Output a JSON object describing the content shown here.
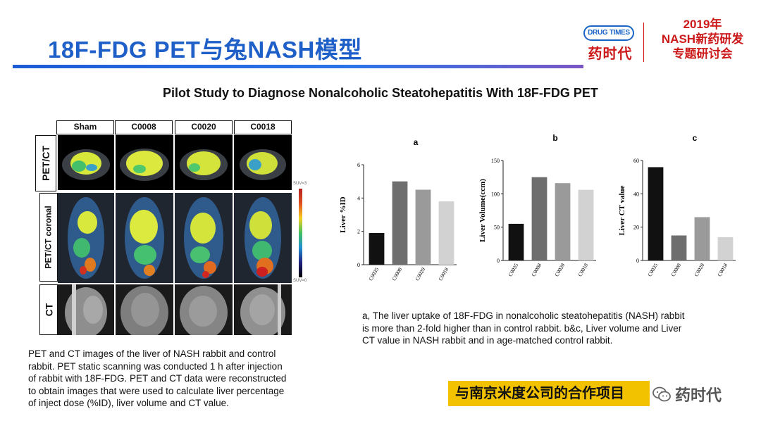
{
  "header": {
    "title": "18F-FDG PET与兔NASH模型",
    "logo_text": "DRUG TIMES",
    "logo_cn": "药时代",
    "event_line1": "2019年",
    "event_line2": "NASH新药研发",
    "event_line3": "专题研讨会"
  },
  "heading": "Pilot Study to Diagnose Nonalcoholic Steatohepatitis With 18F-FDG PET",
  "imaging_panel": {
    "columns": [
      "Sham",
      "C0008",
      "C0020",
      "C0018"
    ],
    "rows": [
      "PET/CT",
      "PET/CT coronal",
      "CT"
    ],
    "scale_top": "SUV=3",
    "scale_bottom": "SUV=0",
    "caption_lines": [
      "PET and CT images of the liver of NASH rabbit and control",
      "rabbit. PET static scanning was conducted 1 h after injection",
      "of rabbit with 18F-FDG. PET and CT data were reconstructed",
      "to obtain images that were used to calculate liver percentage",
      "of inject dose (%ID), liver volume and CT value."
    ]
  },
  "chart_data": [
    {
      "type": "bar",
      "title": "a",
      "categories": [
        "C0035",
        "C0008",
        "C0020",
        "C0018"
      ],
      "values": [
        1.9,
        5.0,
        4.5,
        3.8
      ],
      "ylabel": "Liver %ID",
      "xlabel": "",
      "ylim": [
        0,
        6
      ],
      "yticks": [
        0,
        2,
        4,
        6
      ],
      "bar_colors": [
        "#111111",
        "#6e6e6e",
        "#9a9a9a",
        "#d2d2d2"
      ]
    },
    {
      "type": "bar",
      "title": "b",
      "categories": [
        "C0035",
        "C0008",
        "C0020",
        "C0018"
      ],
      "values": [
        55,
        125,
        116,
        106
      ],
      "ylabel": "Liver Volume(ccm)",
      "xlabel": "",
      "ylim": [
        0,
        150
      ],
      "yticks": [
        0,
        50,
        100,
        150
      ],
      "bar_colors": [
        "#111111",
        "#6e6e6e",
        "#9a9a9a",
        "#d2d2d2"
      ]
    },
    {
      "type": "bar",
      "title": "c",
      "categories": [
        "C0035",
        "C0008",
        "C0020",
        "C0018"
      ],
      "values": [
        56,
        15,
        26,
        14
      ],
      "ylabel": "Liver CT value",
      "xlabel": "",
      "ylim": [
        0,
        60
      ],
      "yticks": [
        0,
        20,
        40,
        60
      ],
      "bar_colors": [
        "#111111",
        "#6e6e6e",
        "#9a9a9a",
        "#d2d2d2"
      ]
    }
  ],
  "charts_caption_lines": [
    "a, The liver uptake of 18F-FDG in nonalcoholic steatohepatitis (NASH) rabbit",
    "is more than 2-fold higher than in control rabbit. b&c, Liver volume and Liver",
    "CT value in NASH rabbit and in age-matched control rabbit."
  ],
  "banner": "与南京米度公司的合作项目",
  "watermark": "药时代",
  "colors": {
    "title_blue": "#1f5fc8",
    "brand_red": "#cc1a1a",
    "banner_yellow": "#f2c200"
  }
}
